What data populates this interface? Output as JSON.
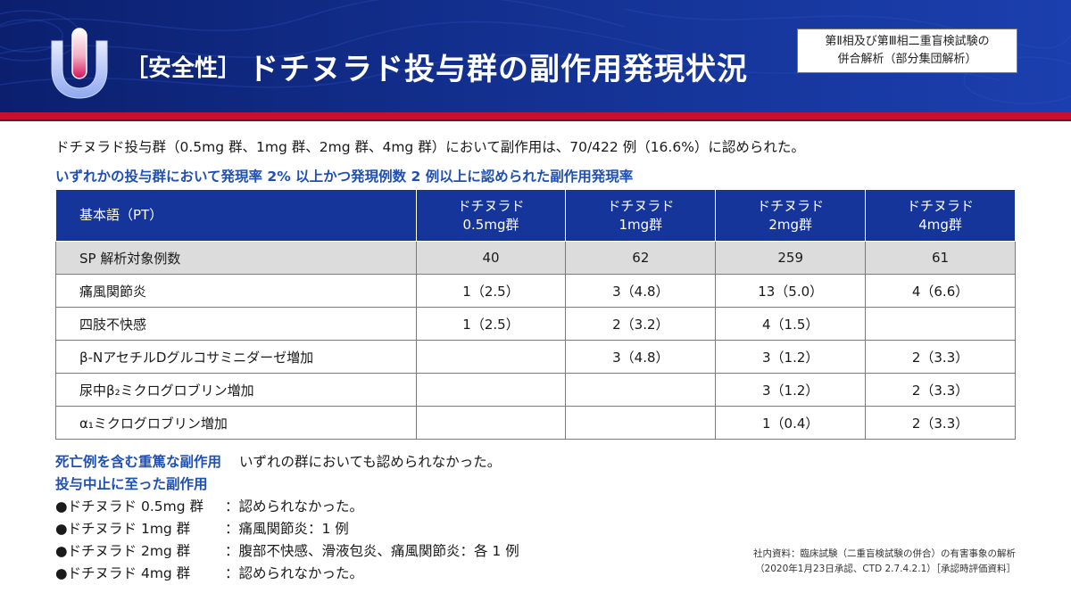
{
  "header": {
    "title_prefix": "［安全性］",
    "title_main": "ドチヌラド投与群の副作用発現状況",
    "study_line1": "第Ⅱ相及び第Ⅲ相二重盲検試験の",
    "study_line2": "併合解析（部分集団解析）",
    "colors": {
      "header_bg": "#13308f",
      "stripe": "#c8102e",
      "accent_text": "#1f4fb5"
    },
    "logo_icon": "capsule-u-logo"
  },
  "intro": "ドチヌラド投与群（0.5mg 群、1mg 群、2mg 群、4mg 群）において副作用は、70/422 例（16.6%）に認められた。",
  "subheading": "いずれかの投与群において発現率 2% 以上かつ発現例数 2 例以上に認められた副作用発現率",
  "table": {
    "header_pt": "基本語（PT）",
    "groups": [
      {
        "line1": "ドチヌラド",
        "line2": "0.5mg群"
      },
      {
        "line1": "ドチヌラド",
        "line2": "1mg群"
      },
      {
        "line1": "ドチヌラド",
        "line2": "2mg群"
      },
      {
        "line1": "ドチヌラド",
        "line2": "4mg群"
      }
    ],
    "sp_row": {
      "label": "SP 解析対象例数",
      "values": [
        "40",
        "62",
        "259",
        "61"
      ]
    },
    "rows": [
      {
        "term": "痛風関節炎",
        "values": [
          "1（2.5）",
          "3（4.8）",
          "13（5.0）",
          "4（6.6）"
        ]
      },
      {
        "term": "四肢不快感",
        "values": [
          "1（2.5）",
          "2（3.2）",
          "4（1.5）",
          ""
        ]
      },
      {
        "term": "β-NアセチルDグルコサミニダーゼ増加",
        "values": [
          "",
          "3（4.8）",
          "3（1.2）",
          "2（3.3）"
        ]
      },
      {
        "term": "尿中β₂ミクログロブリン増加",
        "values": [
          "",
          "",
          "3（1.2）",
          "2（3.3）"
        ]
      },
      {
        "term": "α₁ミクログロブリン増加",
        "values": [
          "",
          "",
          "1（0.4）",
          "2（3.3）"
        ]
      }
    ]
  },
  "notes": {
    "death_label": "死亡例を含む重篤な副作用",
    "death_text": "いずれの群においても認められなかった。",
    "discontinuation_label": "投与中止に至った副作用",
    "items": [
      {
        "group": "●ドチヌラド 0.5mg 群",
        "text": "：認められなかった。"
      },
      {
        "group": "●ドチヌラド 1mg 群",
        "text": "：痛風関節炎：1 例"
      },
      {
        "group": "●ドチヌラド 2mg 群",
        "text": "：腹部不快感、滑液包炎、痛風関節炎：各 1 例"
      },
      {
        "group": "●ドチヌラド 4mg 群",
        "text": "：認められなかった。"
      }
    ]
  },
  "source": {
    "line1": "社内資料：臨床試験（二重盲検試験の併合）の有害事象の解析",
    "line2": "（2020年1月23日承認、CTD 2.7.4.2.1）［承認時評価資料］"
  }
}
